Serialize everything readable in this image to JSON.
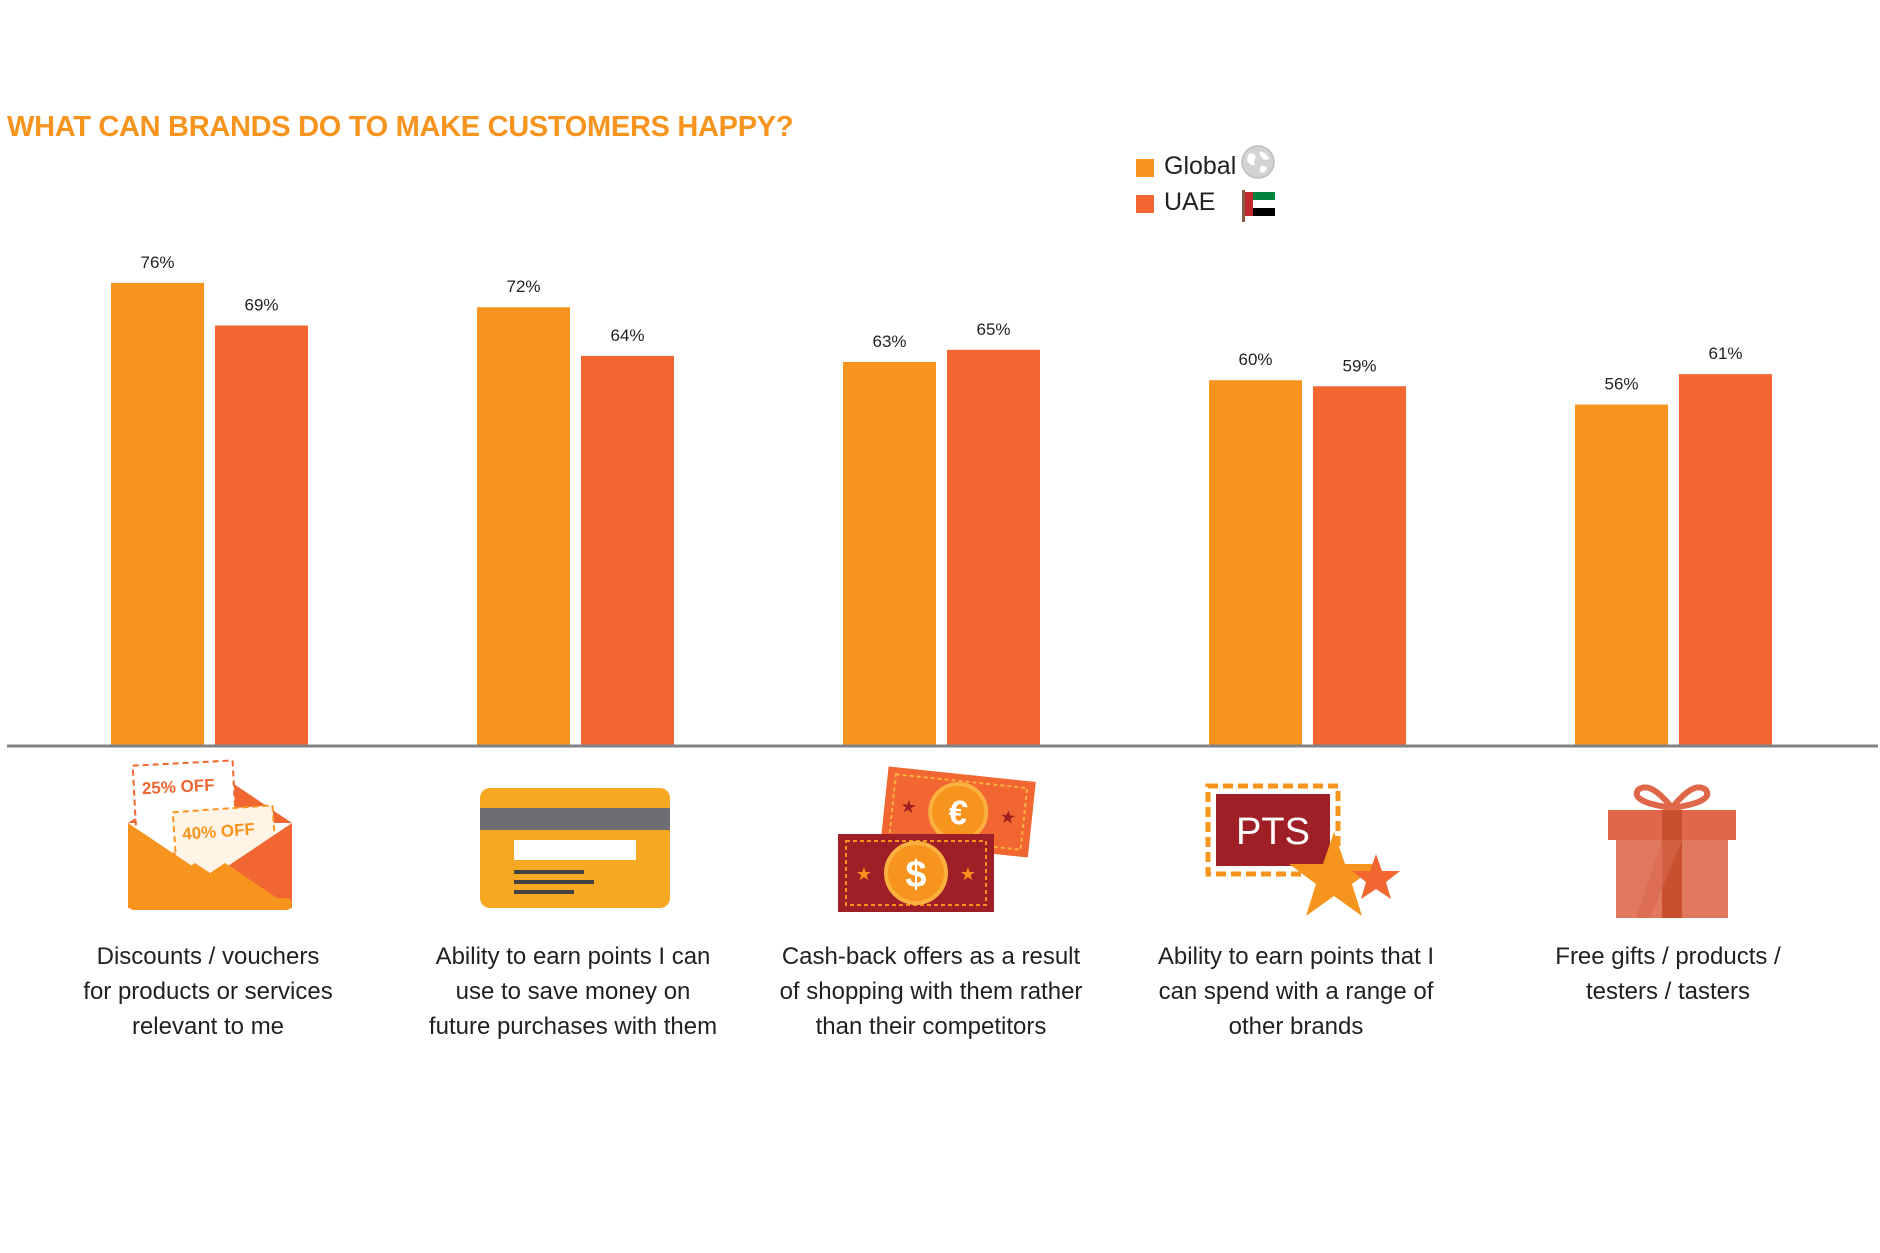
{
  "chart_data": {
    "type": "bar",
    "title": "WHAT CAN BRANDS DO TO MAKE CUSTOMERS HAPPY?",
    "categories": [
      "Discounts / vouchers for products or services relevant to me",
      "Ability to earn points I can use to save money on future purchases with them",
      "Cash-back offers as a result of shopping with them rather than their competitors",
      "Ability to earn points that I can spend with a range of other brands",
      "Free gifts / products / testers / tasters"
    ],
    "category_lines": [
      [
        "Discounts / vouchers",
        "for products or services",
        "relevant to me"
      ],
      [
        "Ability to earn points I can",
        "use to save money on",
        "future purchases with them"
      ],
      [
        "Cash-back offers as a result",
        "of shopping with them rather",
        "than their competitors"
      ],
      [
        "Ability to earn points that I",
        "can spend with a range of",
        "other brands"
      ],
      [
        "Free gifts / products /",
        "testers / tasters"
      ]
    ],
    "series": [
      {
        "name": "Global",
        "values": [
          76,
          72,
          63,
          60,
          56
        ],
        "labels": [
          "76%",
          "72%",
          "63%",
          "60%",
          "56%"
        ],
        "color": "#f7941d"
      },
      {
        "name": "UAE",
        "values": [
          69,
          64,
          65,
          59,
          61
        ],
        "labels": [
          "69%",
          "64%",
          "65%",
          "59%",
          "61%"
        ],
        "color": "#f26631"
      }
    ],
    "ylim": [
      0,
      100
    ],
    "legend_position": "top-right",
    "grid": false,
    "xlabel": "",
    "ylabel": ""
  },
  "legend": {
    "items": [
      {
        "label": "Global",
        "color": "#f7941d",
        "icon": "globe-icon"
      },
      {
        "label": "UAE",
        "color": "#f26631",
        "icon": "uae-flag-icon"
      }
    ]
  },
  "icons": {
    "envelope": {
      "coupon1": "25% OFF",
      "coupon2": "40% OFF"
    },
    "card": {},
    "cash": {
      "euro": "€",
      "dollar": "$"
    },
    "points": {
      "text": "PTS"
    },
    "gift": {}
  },
  "colors": {
    "title": "#f7941d",
    "axis": "#808285",
    "text": "#231f20"
  }
}
